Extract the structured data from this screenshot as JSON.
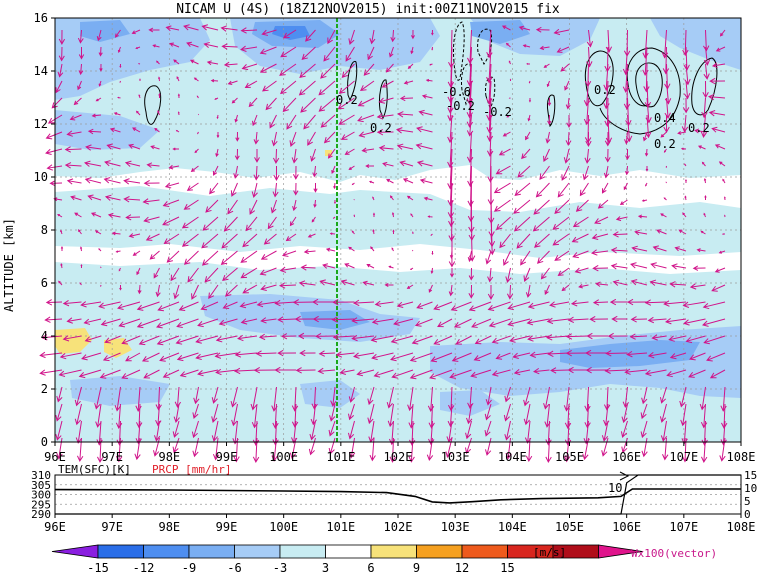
{
  "chart_data": [
    {
      "type": "heatmap",
      "title": "NICAM U (4S) (18Z12NOV2015) init:00Z11NOV2015 fix",
      "xlabel": "",
      "ylabel": "ALTITUDE [km]",
      "x_ticks": [
        "96E",
        "97E",
        "98E",
        "99E",
        "100E",
        "101E",
        "102E",
        "103E",
        "104E",
        "105E",
        "106E",
        "107E",
        "108E"
      ],
      "y_ticks": [
        "0",
        "2",
        "4",
        "6",
        "8",
        "10",
        "12",
        "14",
        "16"
      ],
      "xlim": [
        96,
        108
      ],
      "ylim": [
        0,
        16
      ],
      "grid": true,
      "marker_line_lon": 101,
      "contour_labels": [
        "0.2",
        "0.2",
        "-0.6",
        "-0.2",
        "-0.2",
        "0.2",
        "0.4",
        "0.2",
        "0.2"
      ],
      "vector_label": "Wx100(vector)",
      "colorbar": {
        "ticks": [
          "-15",
          "-12",
          "-9",
          "-6",
          "-3",
          "3",
          "6",
          "9",
          "12",
          "15"
        ],
        "unit": "[m/s]",
        "colors": [
          "#8a1ee0",
          "#2a6ee8",
          "#4e8ef0",
          "#7aaef2",
          "#a6ccf6",
          "#c8ecf2",
          "#ffffff",
          "#f7e27a",
          "#f5a020",
          "#ee5a1c",
          "#d8261e",
          "#b00e1a",
          "#e0148c"
        ]
      }
    },
    {
      "type": "line",
      "series_labels": [
        "TEM(SFC)[K]",
        "PRCP [mm/hr]"
      ],
      "x_ticks": [
        "96E",
        "97E",
        "98E",
        "99E",
        "100E",
        "101E",
        "102E",
        "103E",
        "104E",
        "105E",
        "106E",
        "107E",
        "108E"
      ],
      "y_left_ticks": [
        "310",
        "305",
        "300",
        "295",
        "290"
      ],
      "y_right_ticks": [
        "15",
        "10",
        "5",
        "0"
      ],
      "prcp_annotation": "10",
      "series": [
        {
          "name": "TEM(SFC)[K]",
          "x": [
            96,
            98,
            100,
            101,
            101.8,
            102.3,
            102.6,
            102.9,
            103.3,
            103.8,
            104.5,
            105.5,
            105.9,
            106.1,
            108
          ],
          "values": [
            302.5,
            302.3,
            301.8,
            301.5,
            301.0,
            299.0,
            296.2,
            295.7,
            296.3,
            297.3,
            297.9,
            298.3,
            299.0,
            302.8,
            302.8
          ]
        },
        {
          "name": "PRCP [mm/hr]",
          "x": [
            96,
            105.9,
            106.0,
            106.2,
            108
          ],
          "values": [
            0,
            0,
            12,
            15,
            15
          ]
        }
      ]
    }
  ]
}
